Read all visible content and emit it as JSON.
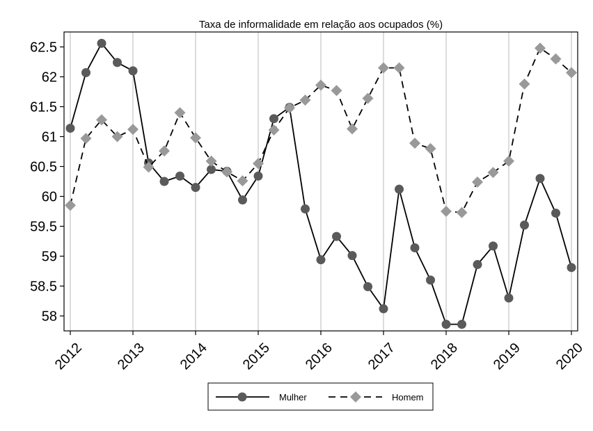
{
  "chart_data": {
    "type": "line",
    "title": "Taxa de informalidade em relação aos ocupados (%)",
    "xlabel": "",
    "ylabel": "",
    "x": [
      2012,
      2012.25,
      2012.5,
      2012.75,
      2013,
      2013.25,
      2013.5,
      2013.75,
      2014,
      2014.25,
      2014.5,
      2014.75,
      2015,
      2015.25,
      2015.5,
      2015.75,
      2016,
      2016.25,
      2016.5,
      2016.75,
      2017,
      2017.25,
      2017.5,
      2017.75,
      2018,
      2018.25,
      2018.5,
      2018.75,
      2019,
      2019.25,
      2019.5,
      2019.75,
      2020
    ],
    "xticks": [
      "2012",
      "2013",
      "2014",
      "2015",
      "2016",
      "2017",
      "2018",
      "2019",
      "2020"
    ],
    "yticks": [
      "58",
      "58.5",
      "59",
      "59.5",
      "60",
      "60.5",
      "61",
      "61.5",
      "62",
      "62.5"
    ],
    "xlim": [
      2011.9,
      2020.1
    ],
    "ylim": [
      57.75,
      62.75
    ],
    "grid": "vertical",
    "legend_position": "bottom",
    "series": [
      {
        "name": "Mulher",
        "color": "#5a5a5a",
        "marker": "circle",
        "line": "solid",
        "values": [
          61.14,
          62.07,
          62.56,
          62.24,
          62.1,
          60.56,
          60.25,
          60.34,
          60.15,
          60.45,
          60.42,
          59.94,
          60.34,
          61.3,
          61.49,
          59.79,
          58.94,
          59.33,
          59.01,
          58.49,
          58.12,
          60.12,
          59.14,
          58.6,
          57.86,
          57.86,
          58.86,
          59.17,
          58.3,
          59.52,
          60.3,
          59.72,
          58.81
        ]
      },
      {
        "name": "Homem",
        "color": "#999999",
        "marker": "diamond",
        "line": "dashed",
        "values": [
          59.85,
          60.97,
          61.28,
          61.0,
          61.12,
          60.49,
          60.76,
          61.4,
          60.98,
          60.59,
          60.41,
          60.26,
          60.55,
          61.11,
          61.48,
          61.61,
          61.86,
          61.77,
          61.13,
          61.64,
          62.15,
          62.15,
          60.89,
          60.8,
          59.75,
          59.73,
          60.24,
          60.4,
          60.59,
          61.88,
          62.48,
          62.3,
          62.07
        ]
      }
    ]
  }
}
